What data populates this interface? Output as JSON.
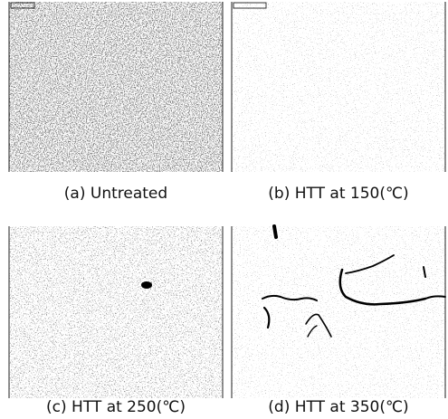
{
  "figure": {
    "panels": [
      {
        "caption": "(a) Untreated"
      },
      {
        "caption": "(b) HTT at 150(℃)"
      },
      {
        "caption": "(c) HTT at 250(℃)"
      },
      {
        "caption": "(d) HTT at 350(℃)"
      }
    ]
  }
}
